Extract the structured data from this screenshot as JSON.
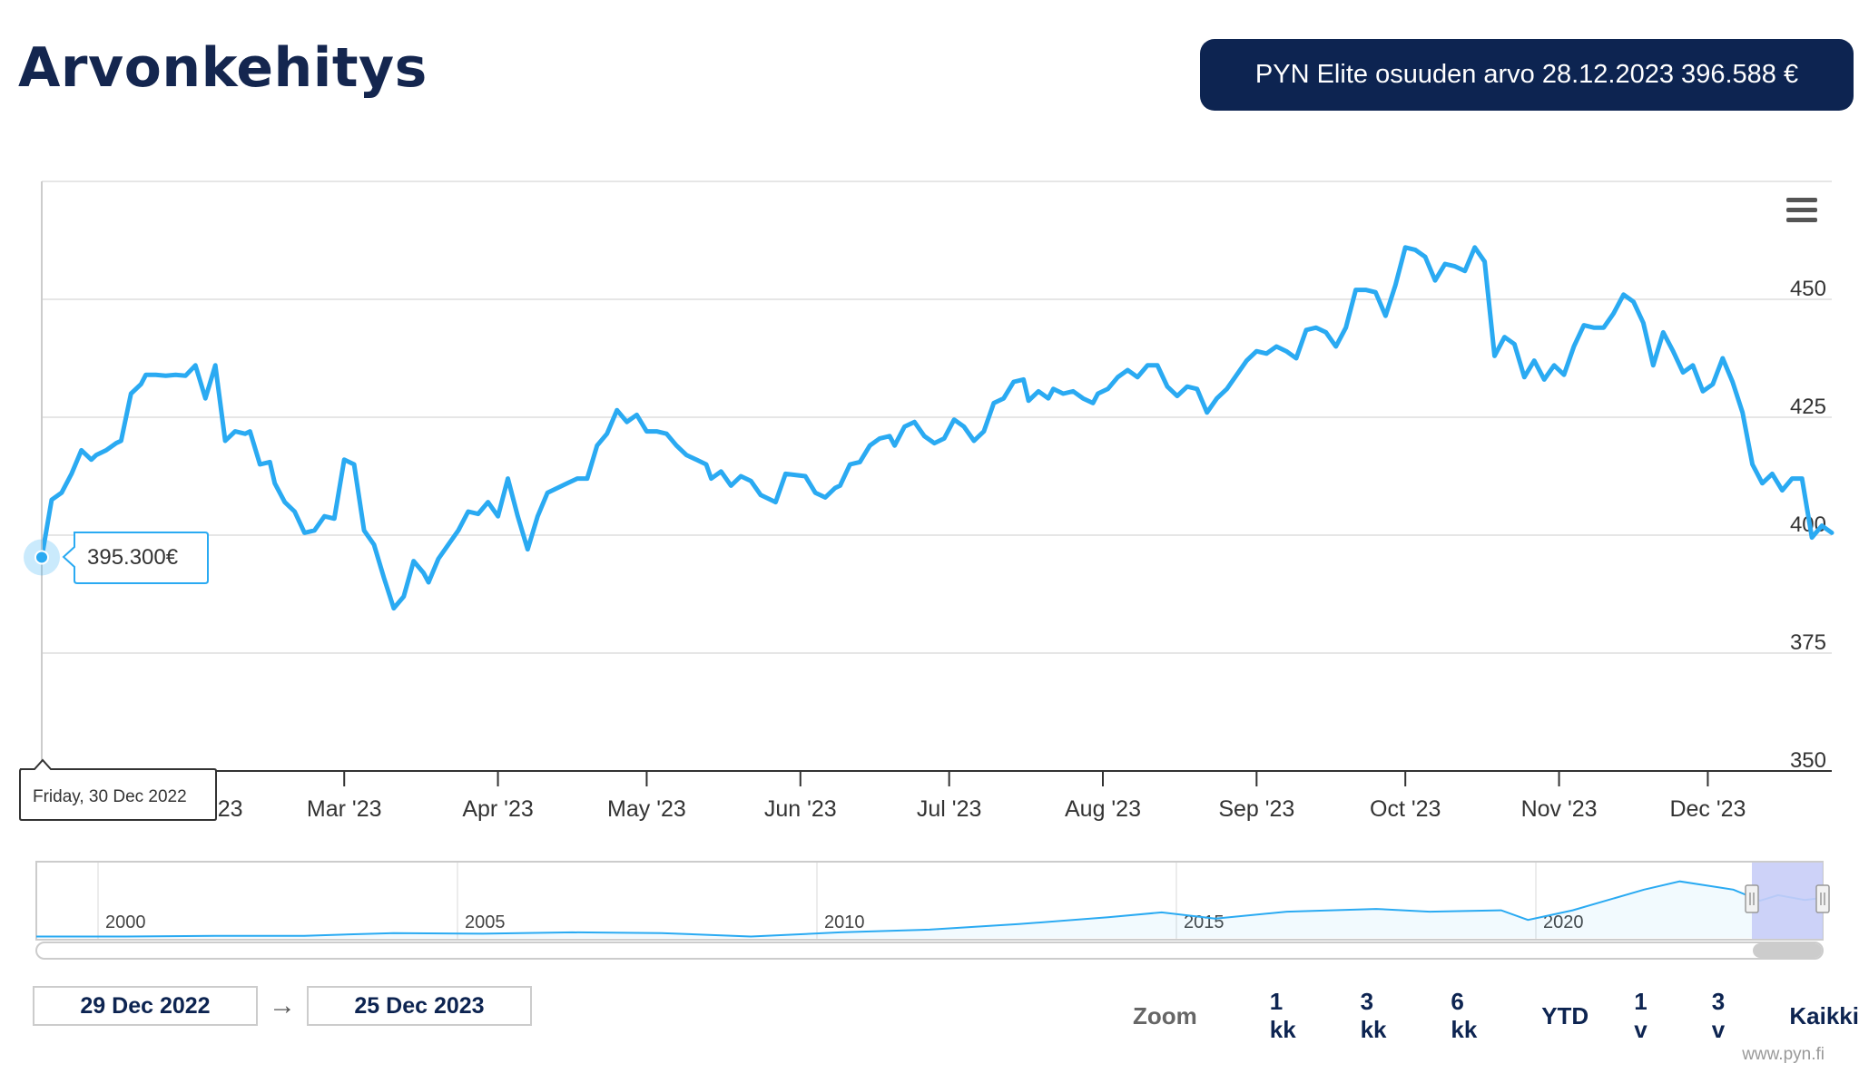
{
  "page": {
    "title": "Arvonkehitys",
    "banner": "PYN Elite osuuden arvo 28.12.2023 396.588 €",
    "source": "www.pyn.fi"
  },
  "tooltip": {
    "value": "395.300€",
    "date": "Friday, 30 Dec 2022",
    "value_num": 395.3
  },
  "range": {
    "from": "29 Dec 2022",
    "arrow": "→",
    "to": "25 Dec 2023"
  },
  "zoom": {
    "label": "Zoom",
    "buttons": [
      "1 kk",
      "3 kk",
      "6 kk",
      "YTD",
      "1 v",
      "3 v",
      "Kaikki"
    ]
  },
  "icons": {
    "menu": "hamburger-menu-icon"
  },
  "colors": {
    "line": "#2aaaf2",
    "banner": "#0d2451",
    "title": "#14264f",
    "navigator_mask": "#c8cdf7"
  },
  "chart_data": {
    "type": "line",
    "title": "",
    "xlabel": "",
    "ylabel": "",
    "ylim": [
      350,
      475
    ],
    "yticks": [
      350,
      375,
      400,
      425,
      450
    ],
    "xticks": [
      {
        "label": "Feb '23",
        "t": 33
      },
      {
        "label": "Mar '23",
        "t": 61
      },
      {
        "label": "Apr '23",
        "t": 92
      },
      {
        "label": "May '23",
        "t": 122
      },
      {
        "label": "Jun '23",
        "t": 153
      },
      {
        "label": "Jul '23",
        "t": 183
      },
      {
        "label": "Aug '23",
        "t": 214
      },
      {
        "label": "Sep '23",
        "t": 245
      },
      {
        "label": "Oct '23",
        "t": 275
      },
      {
        "label": "Nov '23",
        "t": 306
      },
      {
        "label": "Dec '23",
        "t": 336
      }
    ],
    "x_range_days": [
      0,
      361
    ],
    "series": [
      {
        "values": [
          [
            0,
            395.3
          ],
          [
            2,
            407.5
          ],
          [
            4,
            409
          ],
          [
            6,
            413
          ],
          [
            8,
            418
          ],
          [
            10,
            416
          ],
          [
            11,
            417
          ],
          [
            13,
            418
          ],
          [
            15,
            419.5
          ],
          [
            16,
            420
          ],
          [
            18,
            430
          ],
          [
            20,
            432
          ],
          [
            21,
            434
          ],
          [
            23,
            434
          ],
          [
            25,
            433.8
          ],
          [
            27,
            434
          ],
          [
            29,
            433.8
          ],
          [
            31,
            436
          ],
          [
            33,
            429
          ],
          [
            35,
            436
          ],
          [
            37,
            420
          ],
          [
            39,
            422
          ],
          [
            41,
            421.5
          ],
          [
            42,
            422
          ],
          [
            44,
            415
          ],
          [
            46,
            415.5
          ],
          [
            47,
            411
          ],
          [
            49,
            407
          ],
          [
            51,
            405
          ],
          [
            53,
            400.5
          ],
          [
            55,
            401
          ],
          [
            57,
            404
          ],
          [
            59,
            403.5
          ],
          [
            61,
            416
          ],
          [
            63,
            415
          ],
          [
            65,
            401
          ],
          [
            67,
            398
          ],
          [
            69,
            391
          ],
          [
            71,
            384.5
          ],
          [
            73,
            387
          ],
          [
            75,
            394.5
          ],
          [
            77,
            392
          ],
          [
            78,
            390
          ],
          [
            80,
            395
          ],
          [
            82,
            398
          ],
          [
            84,
            401
          ],
          [
            86,
            405
          ],
          [
            88,
            404.5
          ],
          [
            90,
            407
          ],
          [
            92,
            404
          ],
          [
            94,
            412
          ],
          [
            96,
            404
          ],
          [
            98,
            397
          ],
          [
            100,
            404
          ],
          [
            102,
            409
          ],
          [
            104,
            410
          ],
          [
            106,
            411
          ],
          [
            108,
            412
          ],
          [
            110,
            412
          ],
          [
            112,
            419
          ],
          [
            114,
            421.5
          ],
          [
            116,
            426.5
          ],
          [
            118,
            424
          ],
          [
            120,
            425.5
          ],
          [
            122,
            422
          ],
          [
            124,
            422
          ],
          [
            126,
            421.5
          ],
          [
            128,
            419
          ],
          [
            130,
            417
          ],
          [
            132,
            416
          ],
          [
            134,
            415
          ],
          [
            135,
            412
          ],
          [
            137,
            413.5
          ],
          [
            139,
            410.5
          ],
          [
            141,
            412.5
          ],
          [
            143,
            411.5
          ],
          [
            145,
            408.5
          ],
          [
            148,
            407
          ],
          [
            150,
            413
          ],
          [
            154,
            412.5
          ],
          [
            156,
            409
          ],
          [
            158,
            408
          ],
          [
            160,
            410
          ],
          [
            161,
            410.5
          ],
          [
            163,
            415
          ],
          [
            165,
            415.5
          ],
          [
            167,
            419
          ],
          [
            169,
            420.5
          ],
          [
            171,
            421
          ],
          [
            172,
            419
          ],
          [
            174,
            423
          ],
          [
            176,
            424
          ],
          [
            178,
            421
          ],
          [
            180,
            419.5
          ],
          [
            182,
            420.5
          ],
          [
            184,
            424.5
          ],
          [
            186,
            423
          ],
          [
            188,
            420
          ],
          [
            190,
            422
          ],
          [
            192,
            428
          ],
          [
            194,
            429
          ],
          [
            196,
            432.5
          ],
          [
            198,
            433
          ],
          [
            199,
            428.5
          ],
          [
            201,
            430.5
          ],
          [
            203,
            429
          ],
          [
            204,
            431
          ],
          [
            206,
            430
          ],
          [
            208,
            430.5
          ],
          [
            210,
            429
          ],
          [
            212,
            428
          ],
          [
            213,
            430
          ],
          [
            215,
            431
          ],
          [
            217,
            433.5
          ],
          [
            219,
            435
          ],
          [
            221,
            433.5
          ],
          [
            223,
            436
          ],
          [
            225,
            436
          ],
          [
            227,
            431.5
          ],
          [
            229,
            429.5
          ],
          [
            231,
            431.5
          ],
          [
            233,
            431
          ],
          [
            235,
            426
          ],
          [
            237,
            429
          ],
          [
            239,
            431
          ],
          [
            241,
            434
          ],
          [
            243,
            437
          ],
          [
            245,
            439
          ],
          [
            247,
            438.5
          ],
          [
            249,
            440
          ],
          [
            251,
            439
          ],
          [
            253,
            437.5
          ],
          [
            255,
            443.5
          ],
          [
            257,
            444
          ],
          [
            259,
            443
          ],
          [
            261,
            440
          ],
          [
            263,
            444
          ],
          [
            265,
            452
          ],
          [
            267,
            452
          ],
          [
            269,
            451.5
          ],
          [
            271,
            446.5
          ],
          [
            273,
            453
          ],
          [
            275,
            461
          ],
          [
            277,
            460.5
          ],
          [
            279,
            459
          ],
          [
            281,
            454
          ],
          [
            283,
            457.5
          ],
          [
            285,
            457
          ],
          [
            287,
            456
          ],
          [
            289,
            461
          ],
          [
            291,
            458
          ],
          [
            293,
            438
          ],
          [
            295,
            442
          ],
          [
            297,
            440.5
          ],
          [
            299,
            433.5
          ],
          [
            301,
            437
          ],
          [
            303,
            433
          ],
          [
            305,
            436
          ],
          [
            307,
            434
          ],
          [
            309,
            440
          ],
          [
            311,
            444.5
          ],
          [
            313,
            444
          ],
          [
            315,
            444
          ],
          [
            317,
            447
          ],
          [
            319,
            451
          ],
          [
            321,
            449.5
          ],
          [
            323,
            445
          ],
          [
            325,
            436
          ],
          [
            327,
            443
          ],
          [
            329,
            439
          ],
          [
            331,
            434.5
          ],
          [
            333,
            436
          ],
          [
            335,
            430.5
          ],
          [
            337,
            432
          ],
          [
            339,
            437.5
          ],
          [
            341,
            432.5
          ],
          [
            343,
            426
          ],
          [
            345,
            415
          ],
          [
            347,
            411
          ],
          [
            349,
            413
          ],
          [
            351,
            409.5
          ],
          [
            353,
            412
          ],
          [
            355,
            412
          ],
          [
            357,
            399.5
          ],
          [
            359,
            402
          ],
          [
            361,
            400.5
          ]
        ]
      }
    ],
    "navigator": {
      "x_tick_labels": [
        "2000",
        "2005",
        "2010",
        "2015",
        "2020"
      ]
    }
  }
}
